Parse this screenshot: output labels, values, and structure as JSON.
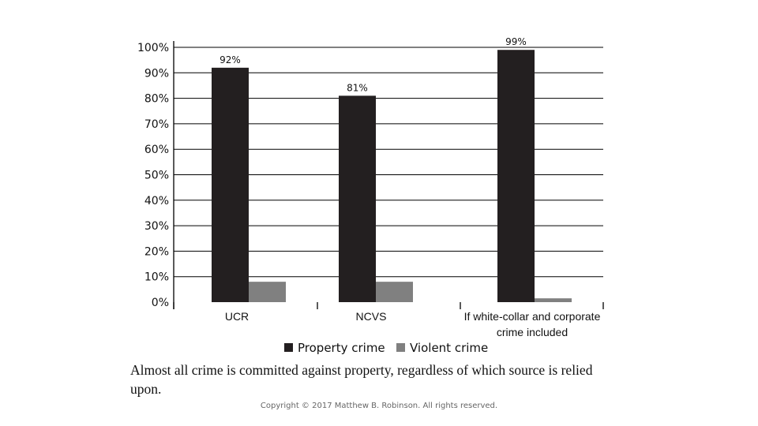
{
  "chart_data": {
    "type": "bar",
    "categories": [
      [
        "UCR"
      ],
      [
        "NCVS"
      ],
      [
        "If white-collar and corporate",
        "crime included"
      ]
    ],
    "series": [
      {
        "name": "Property crime",
        "values": [
          92,
          81,
          99
        ],
        "labels": [
          "92%",
          "81%",
          "99%"
        ],
        "color": "#231f20"
      },
      {
        "name": "Violent crime",
        "values": [
          8,
          8,
          1.5
        ],
        "labels": [
          "",
          "",
          ""
        ],
        "color": "#808080"
      }
    ],
    "yticks": [
      "0%",
      "10%",
      "20%",
      "30%",
      "40%",
      "50%",
      "60%",
      "70%",
      "80%",
      "90%",
      "100%"
    ],
    "ylim": [
      0,
      100
    ],
    "grid": true,
    "legend_position": "bottom",
    "title": "",
    "xlabel": "",
    "ylabel": ""
  },
  "caption": "Almost all crime is committed against property, regardless of which source is relied upon.",
  "copyright": "Copyright © 2017 Matthew B. Robinson. All rights reserved."
}
